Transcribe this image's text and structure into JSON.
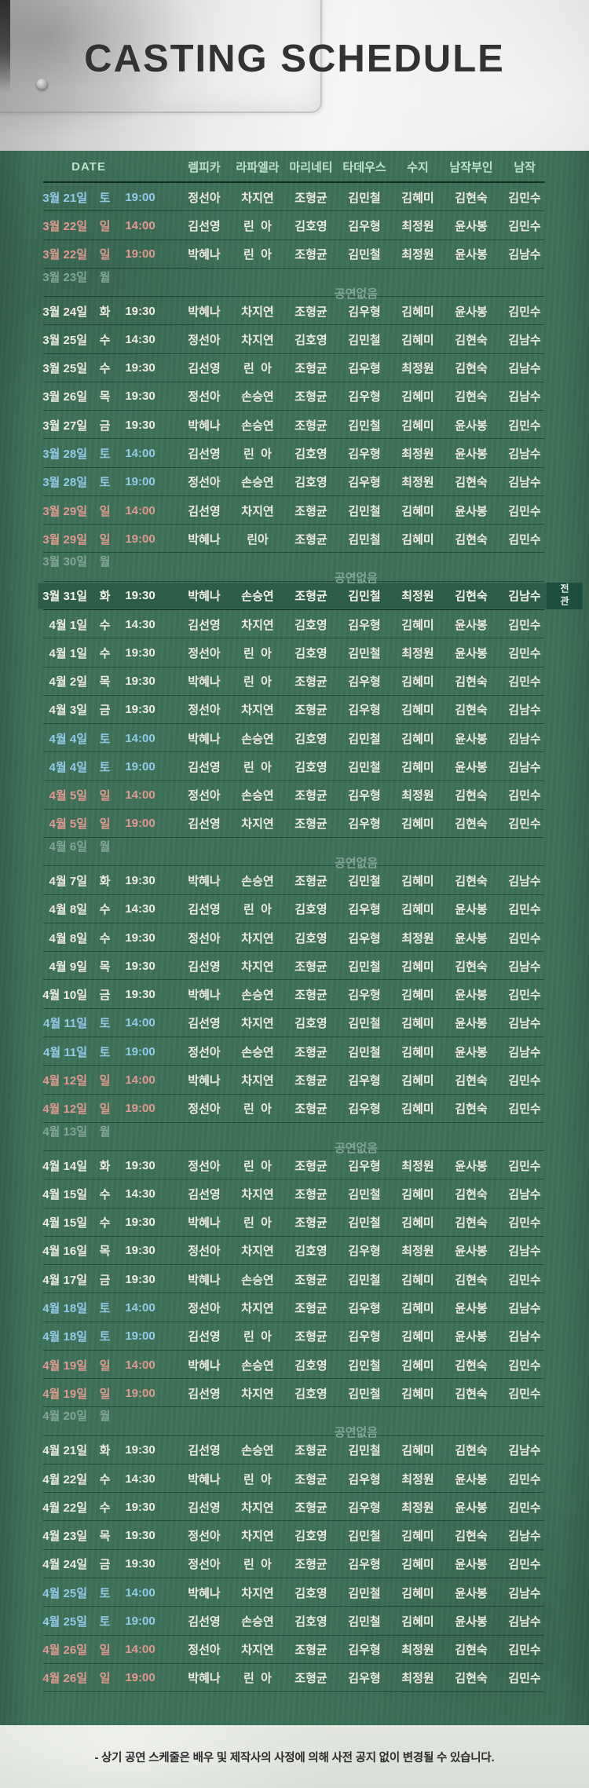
{
  "title": "CASTING SCHEDULE",
  "table": {
    "date_header": "DATE",
    "columns": [
      "렘피카",
      "라파엘라",
      "마리네티",
      "타데우스",
      "수지",
      "남작부인",
      "남작"
    ],
    "no_show_label": "공연없음",
    "full_house_label": "전관",
    "rows": [
      {
        "date": "3월 21일",
        "day": "토",
        "time": "19:00",
        "type": "sat",
        "cast": [
          "정선아",
          "차지연",
          "조형균",
          "김민철",
          "김혜미",
          "김현숙",
          "김민수"
        ]
      },
      {
        "date": "3월 22일",
        "day": "일",
        "time": "14:00",
        "type": "sun",
        "cast": [
          "김선영",
          "린  아",
          "김호영",
          "김우형",
          "최정원",
          "윤사봉",
          "김민수"
        ]
      },
      {
        "date": "3월 22일",
        "day": "일",
        "time": "19:00",
        "type": "sun",
        "cast": [
          "박혜나",
          "린  아",
          "조형균",
          "김민철",
          "최정원",
          "윤사봉",
          "김남수"
        ]
      },
      {
        "date": "3월 23일",
        "day": "월",
        "time": "",
        "type": "noshow",
        "cast": []
      },
      {
        "date": "3월 24일",
        "day": "화",
        "time": "19:30",
        "type": "weekday",
        "cast": [
          "박혜나",
          "차지연",
          "조형균",
          "김우형",
          "김혜미",
          "윤사봉",
          "김민수"
        ]
      },
      {
        "date": "3월 25일",
        "day": "수",
        "time": "14:30",
        "type": "weekday",
        "cast": [
          "정선아",
          "차지연",
          "김호영",
          "김민철",
          "김혜미",
          "김현숙",
          "김남수"
        ]
      },
      {
        "date": "3월 25일",
        "day": "수",
        "time": "19:30",
        "type": "weekday",
        "cast": [
          "김선영",
          "린  아",
          "조형균",
          "김우형",
          "최정원",
          "김현숙",
          "김남수"
        ]
      },
      {
        "date": "3월 26일",
        "day": "목",
        "time": "19:30",
        "type": "weekday",
        "cast": [
          "정선아",
          "손승연",
          "조형균",
          "김우형",
          "김혜미",
          "김현숙",
          "김남수"
        ]
      },
      {
        "date": "3월 27일",
        "day": "금",
        "time": "19:30",
        "type": "weekday",
        "cast": [
          "박혜나",
          "손승연",
          "조형균",
          "김민철",
          "김혜미",
          "윤사봉",
          "김민수"
        ]
      },
      {
        "date": "3월 28일",
        "day": "토",
        "time": "14:00",
        "type": "sat",
        "cast": [
          "김선영",
          "린  아",
          "김호영",
          "김우형",
          "최정원",
          "윤사봉",
          "김남수"
        ]
      },
      {
        "date": "3월 28일",
        "day": "토",
        "time": "19:00",
        "type": "sat",
        "cast": [
          "정선아",
          "손승연",
          "김호영",
          "김우형",
          "최정원",
          "김현숙",
          "김남수"
        ]
      },
      {
        "date": "3월 29일",
        "day": "일",
        "time": "14:00",
        "type": "sun",
        "cast": [
          "김선영",
          "차지연",
          "조형균",
          "김민철",
          "김혜미",
          "윤사봉",
          "김민수"
        ]
      },
      {
        "date": "3월 29일",
        "day": "일",
        "time": "19:00",
        "type": "sun",
        "cast": [
          "박혜나",
          "린아",
          "조형균",
          "김민철",
          "김혜미",
          "김현숙",
          "김민수"
        ]
      },
      {
        "date": "3월 30일",
        "day": "월",
        "time": "",
        "type": "noshow",
        "cast": []
      },
      {
        "date": "3월 31일",
        "day": "화",
        "time": "19:30",
        "type": "special",
        "cast": [
          "박혜나",
          "손승연",
          "조형균",
          "김민철",
          "최정원",
          "김현숙",
          "김남수"
        ]
      },
      {
        "date": "4월 1일",
        "day": "수",
        "time": "14:30",
        "type": "weekday",
        "cast": [
          "김선영",
          "차지연",
          "김호영",
          "김우형",
          "김혜미",
          "윤사봉",
          "김민수"
        ]
      },
      {
        "date": "4월 1일",
        "day": "수",
        "time": "19:30",
        "type": "weekday",
        "cast": [
          "정선아",
          "린  아",
          "김호영",
          "김민철",
          "최정원",
          "윤사봉",
          "김민수"
        ]
      },
      {
        "date": "4월 2일",
        "day": "목",
        "time": "19:30",
        "type": "weekday",
        "cast": [
          "박혜나",
          "린  아",
          "조형균",
          "김우형",
          "김혜미",
          "김현숙",
          "김민수"
        ]
      },
      {
        "date": "4월 3일",
        "day": "금",
        "time": "19:30",
        "type": "weekday",
        "cast": [
          "정선아",
          "차지연",
          "조형균",
          "김우형",
          "김혜미",
          "김현숙",
          "김남수"
        ]
      },
      {
        "date": "4월 4일",
        "day": "토",
        "time": "14:00",
        "type": "sat",
        "cast": [
          "박혜나",
          "손승연",
          "김호영",
          "김민철",
          "김혜미",
          "윤사봉",
          "김남수"
        ]
      },
      {
        "date": "4월 4일",
        "day": "토",
        "time": "19:00",
        "type": "sat",
        "cast": [
          "김선영",
          "린  아",
          "김호영",
          "김민철",
          "김혜미",
          "윤사봉",
          "김남수"
        ]
      },
      {
        "date": "4월 5일",
        "day": "일",
        "time": "14:00",
        "type": "sun",
        "cast": [
          "정선아",
          "손승연",
          "조형균",
          "김우형",
          "최정원",
          "김현숙",
          "김민수"
        ]
      },
      {
        "date": "4월 5일",
        "day": "일",
        "time": "19:00",
        "type": "sun",
        "cast": [
          "김선영",
          "차지연",
          "조형균",
          "김우형",
          "김혜미",
          "김현숙",
          "김민수"
        ]
      },
      {
        "date": "4월 6일",
        "day": "월",
        "time": "",
        "type": "noshow",
        "cast": []
      },
      {
        "date": "4월 7일",
        "day": "화",
        "time": "19:30",
        "type": "weekday",
        "cast": [
          "박혜나",
          "손승연",
          "조형균",
          "김민철",
          "김혜미",
          "김현숙",
          "김남수"
        ]
      },
      {
        "date": "4월 8일",
        "day": "수",
        "time": "14:30",
        "type": "weekday",
        "cast": [
          "김선영",
          "린  아",
          "김호영",
          "김우형",
          "김혜미",
          "윤사봉",
          "김민수"
        ]
      },
      {
        "date": "4월 8일",
        "day": "수",
        "time": "19:30",
        "type": "weekday",
        "cast": [
          "정선아",
          "차지연",
          "김호영",
          "김우형",
          "최정원",
          "윤사봉",
          "김민수"
        ]
      },
      {
        "date": "4월 9일",
        "day": "목",
        "time": "19:30",
        "type": "weekday",
        "cast": [
          "김선영",
          "차지연",
          "조형균",
          "김민철",
          "김혜미",
          "김현숙",
          "김남수"
        ]
      },
      {
        "date": "4월 10일",
        "day": "금",
        "time": "19:30",
        "type": "weekday",
        "cast": [
          "박혜나",
          "손승연",
          "조형균",
          "김우형",
          "김혜미",
          "윤사봉",
          "김민수"
        ]
      },
      {
        "date": "4월 11일",
        "day": "토",
        "time": "14:00",
        "type": "sat",
        "cast": [
          "김선영",
          "차지연",
          "김호영",
          "김민철",
          "김혜미",
          "윤사봉",
          "김남수"
        ]
      },
      {
        "date": "4월 11일",
        "day": "토",
        "time": "19:00",
        "type": "sat",
        "cast": [
          "정선아",
          "손승연",
          "조형균",
          "김민철",
          "김혜미",
          "윤사봉",
          "김남수"
        ]
      },
      {
        "date": "4월 12일",
        "day": "일",
        "time": "14:00",
        "type": "sun",
        "cast": [
          "박혜나",
          "차지연",
          "조형균",
          "김우형",
          "김혜미",
          "김현숙",
          "김민수"
        ]
      },
      {
        "date": "4월 12일",
        "day": "일",
        "time": "19:00",
        "type": "sun",
        "cast": [
          "정선아",
          "린  아",
          "조형균",
          "김우형",
          "김혜미",
          "김현숙",
          "김민수"
        ]
      },
      {
        "date": "4월 13일",
        "day": "월",
        "time": "",
        "type": "noshow",
        "cast": []
      },
      {
        "date": "4월 14일",
        "day": "화",
        "time": "19:30",
        "type": "weekday",
        "cast": [
          "정선아",
          "린  아",
          "조형균",
          "김우형",
          "최정원",
          "윤사봉",
          "김민수"
        ]
      },
      {
        "date": "4월 15일",
        "day": "수",
        "time": "14:30",
        "type": "weekday",
        "cast": [
          "김선영",
          "차지연",
          "조형균",
          "김민철",
          "김혜미",
          "김현숙",
          "김남수"
        ]
      },
      {
        "date": "4월 15일",
        "day": "수",
        "time": "19:30",
        "type": "weekday",
        "cast": [
          "박혜나",
          "린  아",
          "조형균",
          "김민철",
          "김혜미",
          "김현숙",
          "김민수"
        ]
      },
      {
        "date": "4월 16일",
        "day": "목",
        "time": "19:30",
        "type": "weekday",
        "cast": [
          "정선아",
          "차지연",
          "김호영",
          "김우형",
          "최정원",
          "윤사봉",
          "김남수"
        ]
      },
      {
        "date": "4월 17일",
        "day": "금",
        "time": "19:30",
        "type": "weekday",
        "cast": [
          "박혜나",
          "손승연",
          "조형균",
          "김민철",
          "김혜미",
          "김현숙",
          "김민수"
        ]
      },
      {
        "date": "4월 18일",
        "day": "토",
        "time": "14:00",
        "type": "sat",
        "cast": [
          "정선아",
          "차지연",
          "조형균",
          "김우형",
          "김혜미",
          "윤사봉",
          "김남수"
        ]
      },
      {
        "date": "4월 18일",
        "day": "토",
        "time": "19:00",
        "type": "sat",
        "cast": [
          "김선영",
          "린  아",
          "조형균",
          "김우형",
          "김혜미",
          "윤사봉",
          "김남수"
        ]
      },
      {
        "date": "4월 19일",
        "day": "일",
        "time": "14:00",
        "type": "sun",
        "cast": [
          "박혜나",
          "손승연",
          "김호영",
          "김민철",
          "김혜미",
          "김현숙",
          "김민수"
        ]
      },
      {
        "date": "4월 19일",
        "day": "일",
        "time": "19:00",
        "type": "sun",
        "cast": [
          "김선영",
          "차지연",
          "김호영",
          "김민철",
          "김혜미",
          "김현숙",
          "김민수"
        ]
      },
      {
        "date": "4월 20일",
        "day": "월",
        "time": "",
        "type": "noshow",
        "cast": []
      },
      {
        "date": "4월 21일",
        "day": "화",
        "time": "19:30",
        "type": "weekday",
        "cast": [
          "김선영",
          "손승연",
          "조형균",
          "김민철",
          "김혜미",
          "김현숙",
          "김남수"
        ]
      },
      {
        "date": "4월 22일",
        "day": "수",
        "time": "14:30",
        "type": "weekday",
        "cast": [
          "박혜나",
          "린  아",
          "조형균",
          "김우형",
          "최정원",
          "윤사봉",
          "김민수"
        ]
      },
      {
        "date": "4월 22일",
        "day": "수",
        "time": "19:30",
        "type": "weekday",
        "cast": [
          "김선영",
          "차지연",
          "조형균",
          "김우형",
          "최정원",
          "윤사봉",
          "김민수"
        ]
      },
      {
        "date": "4월 23일",
        "day": "목",
        "time": "19:30",
        "type": "weekday",
        "cast": [
          "정선아",
          "차지연",
          "김호영",
          "김민철",
          "김혜미",
          "김현숙",
          "김남수"
        ]
      },
      {
        "date": "4월 24일",
        "day": "금",
        "time": "19:30",
        "type": "weekday",
        "cast": [
          "정선아",
          "린  아",
          "조형균",
          "김우형",
          "김혜미",
          "윤사봉",
          "김민수"
        ]
      },
      {
        "date": "4월 25일",
        "day": "토",
        "time": "14:00",
        "type": "sat",
        "cast": [
          "박혜나",
          "차지연",
          "김호영",
          "김민철",
          "김혜미",
          "윤사봉",
          "김남수"
        ]
      },
      {
        "date": "4월 25일",
        "day": "토",
        "time": "19:00",
        "type": "sat",
        "cast": [
          "김선영",
          "손승연",
          "김호영",
          "김민철",
          "김혜미",
          "윤사봉",
          "김남수"
        ]
      },
      {
        "date": "4월 26일",
        "day": "일",
        "time": "14:00",
        "type": "sun",
        "cast": [
          "정선아",
          "차지연",
          "조형균",
          "김우형",
          "최정원",
          "김현숙",
          "김민수"
        ]
      },
      {
        "date": "4월 26일",
        "day": "일",
        "time": "19:00",
        "type": "sun",
        "cast": [
          "박혜나",
          "린  아",
          "조형균",
          "김우형",
          "최정원",
          "김현숙",
          "김민수"
        ]
      }
    ]
  },
  "footer": {
    "note": "-  상기 공연 스케줄은 배우 및 제작사의 사정에 의해 사전 공지 없이 변경될 수 있습니다."
  },
  "colors": {
    "background_green": "#3e7159",
    "highlight_row_green": "#2d5c49",
    "full_house_tab_green": "#1e4f3e",
    "saturday_blue": "#93c9e9",
    "sunday_pink": "#e1988f",
    "muted_gray_green": "#83a596",
    "text_cream": "#efeadf",
    "header_mint": "#bfe0cc",
    "title_dark": "#323234"
  }
}
